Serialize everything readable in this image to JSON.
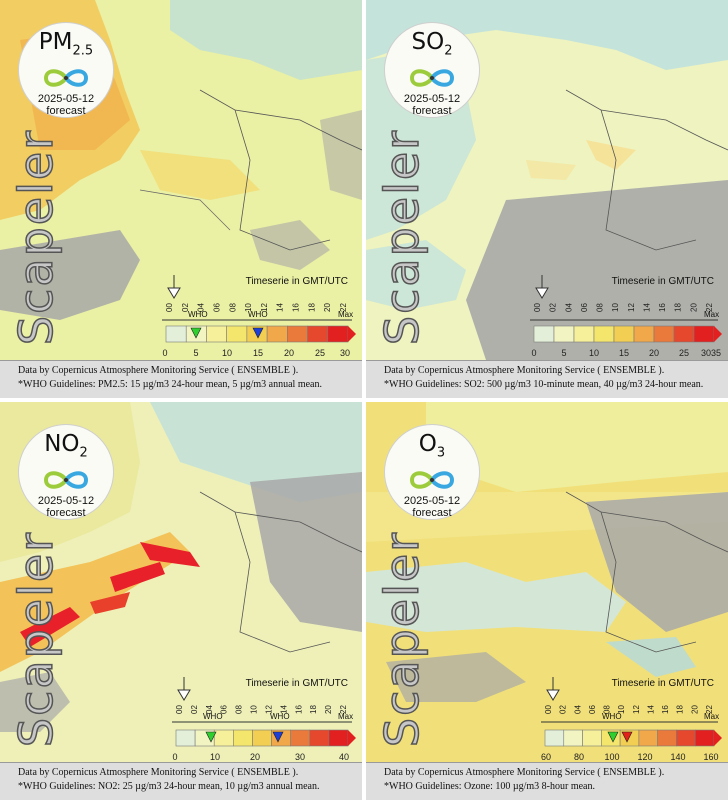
{
  "panels": [
    {
      "pollutant_main": "PM",
      "pollutant_sub": "2.5",
      "date": "2025-05-12",
      "forecast": "forecast",
      "brand": "Scapeler",
      "timeserie_label": "Timeserie in GMT/UTC",
      "hours": [
        "00",
        "02",
        "04",
        "06",
        "08",
        "10",
        "12",
        "14",
        "16",
        "18",
        "20",
        "22"
      ],
      "who_label": "WHO",
      "who_label_2": "WHO",
      "max_label": "Max",
      "scale": [
        "0",
        "5",
        "10",
        "15",
        "20",
        "25",
        "30"
      ],
      "caption_line1": "Data by Copernicus Atmosphere Monitoring Service ( ENSEMBLE ).",
      "caption_line2": "*WHO Guidelines: PM2.5: 15 µg/m3 24-hour mean, 5 µg/m3 annual mean."
    },
    {
      "pollutant_main": "SO",
      "pollutant_sub": "2",
      "date": "2025-05-12",
      "forecast": "forecast",
      "brand": "Scapeler",
      "timeserie_label": "Timeserie in GMT/UTC",
      "hours": [
        "00",
        "02",
        "04",
        "06",
        "08",
        "10",
        "12",
        "14",
        "16",
        "18",
        "20",
        "22"
      ],
      "max_label": "Max",
      "scale": [
        "0",
        "5",
        "10",
        "15",
        "20",
        "25",
        "30",
        "35"
      ],
      "caption_line1": "Data by Copernicus Atmosphere Monitoring Service ( ENSEMBLE ).",
      "caption_line2": "*WHO Guidelines: SO2: 500 µg/m3 10-minute mean, 40 µg/m3 24-hour mean."
    },
    {
      "pollutant_main": "NO",
      "pollutant_sub": "2",
      "date": "2025-05-12",
      "forecast": "forecast",
      "brand": "Scapeler",
      "timeserie_label": "Timeserie in GMT/UTC",
      "hours": [
        "00",
        "02",
        "04",
        "06",
        "08",
        "10",
        "12",
        "14",
        "16",
        "18",
        "20",
        "22"
      ],
      "who_label": "WHO",
      "who_label_2": "WHO",
      "max_label": "Max",
      "scale": [
        "0",
        "10",
        "20",
        "30",
        "40"
      ],
      "caption_line1": "Data by Copernicus Atmosphere Monitoring Service ( ENSEMBLE ).",
      "caption_line2": "*WHO Guidelines: NO2: 25 µg/m3 24-hour mean, 10 µg/m3 annual mean."
    },
    {
      "pollutant_main": "O",
      "pollutant_sub": "3",
      "date": "2025-05-12",
      "forecast": "forecast",
      "brand": "Scapeler",
      "timeserie_label": "Timeserie in GMT/UTC",
      "hours": [
        "00",
        "02",
        "04",
        "06",
        "08",
        "10",
        "12",
        "14",
        "16",
        "18",
        "20",
        "22"
      ],
      "who_label": "WHO",
      "max_label": "Max",
      "scale": [
        "60",
        "80",
        "100",
        "120",
        "140",
        "160"
      ],
      "caption_line1": "Data by Copernicus Atmosphere Monitoring Service ( ENSEMBLE ).",
      "caption_line2": "*WHO Guidelines: Ozone: 100 µg/m3 8-hour mean."
    }
  ],
  "colors": {
    "sea": "#a9d9ef",
    "land_low": "#eef3bf",
    "land_yellow": "#f4ee9a",
    "nodata": "#a8a8a8",
    "hotspot_orange": "#f5b34a",
    "hotspot_red": "#e8202a",
    "who_green": "#2fcf2f",
    "who_blue": "#1d3fd6",
    "who_red": "#e2231a",
    "legend": [
      "#e4efd9",
      "#f2f5c1",
      "#f6f09a",
      "#f4e66c",
      "#f2cf52",
      "#f0a84a",
      "#ea7a3c",
      "#e5482c",
      "#e1201f"
    ]
  }
}
